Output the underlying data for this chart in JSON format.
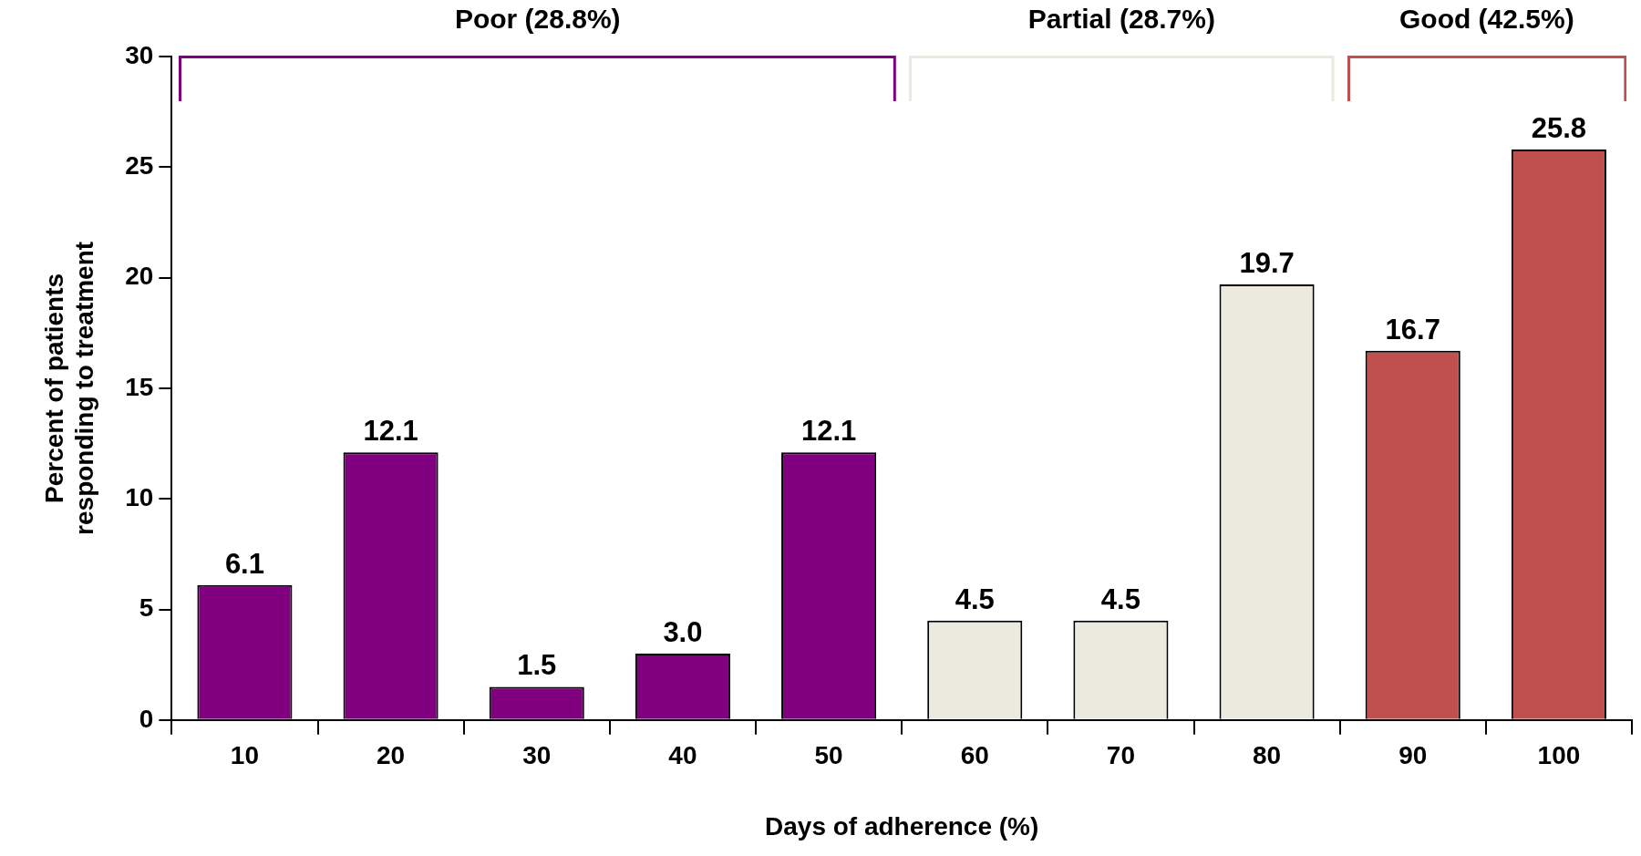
{
  "chart_data": {
    "type": "bar",
    "xlabel": "Days of adherence (%)",
    "ylabel": "Percent of patients\nresponding to treatment",
    "categories": [
      "10",
      "20",
      "30",
      "40",
      "50",
      "60",
      "70",
      "80",
      "90",
      "100"
    ],
    "values": [
      6.1,
      12.1,
      1.5,
      3.0,
      12.1,
      4.5,
      4.5,
      19.7,
      16.7,
      25.8
    ],
    "value_labels": [
      "6.1",
      "12.1",
      "1.5",
      "3.0",
      "12.1",
      "4.5",
      "4.5",
      "19.7",
      "16.7",
      "25.8"
    ],
    "colors": [
      "#800080",
      "#800080",
      "#800080",
      "#800080",
      "#800080",
      "#ece9df",
      "#ece9df",
      "#ece9df",
      "#c0504d",
      "#c0504d"
    ],
    "annotations": [
      "Poor (28.8%)",
      "Partial (28.7%)",
      "Good (42.5%)"
    ],
    "ylim": [
      0,
      30
    ],
    "yticks": [
      0,
      5,
      10,
      15,
      20,
      25,
      30
    ],
    "grid": false,
    "legend": false
  }
}
